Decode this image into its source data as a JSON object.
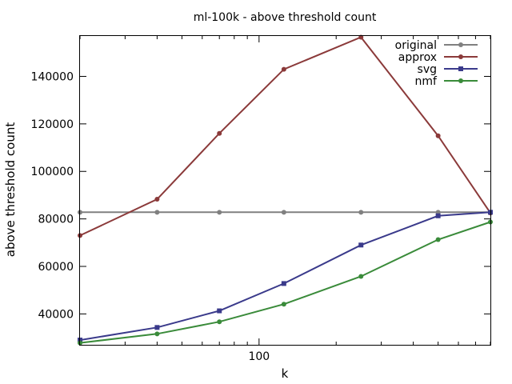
{
  "chart_data": {
    "type": "line",
    "title": "ml-100k - above threshold count",
    "xlabel": "k",
    "ylabel": "above threshold count",
    "x_scale": "log",
    "xlim": [
      20,
      800
    ],
    "ylim": [
      27000,
      157000
    ],
    "x_ticks": [
      100
    ],
    "x_tick_labels": [
      "100"
    ],
    "y_ticks": [
      40000,
      60000,
      80000,
      100000,
      120000,
      140000
    ],
    "y_tick_labels": [
      "40000",
      "60000",
      "80000",
      "100000",
      "120000",
      "140000"
    ],
    "grid": false,
    "legend_position": "top-right",
    "x": [
      20,
      40,
      70,
      125,
      250,
      500,
      800
    ],
    "series": [
      {
        "name": "original",
        "color": "#808080",
        "marker": "circle",
        "values": [
          82800,
          82800,
          82800,
          82800,
          82800,
          82800,
          82800
        ]
      },
      {
        "name": "approx",
        "color": "#8b3a3a",
        "marker": "circle",
        "values": [
          73000,
          88300,
          116000,
          143000,
          156500,
          115000,
          82500
        ]
      },
      {
        "name": "svg",
        "color": "#3a3a8b",
        "marker": "square",
        "values": [
          29000,
          34300,
          41300,
          52800,
          69000,
          81300,
          82800
        ]
      },
      {
        "name": "nmf",
        "color": "#3a8b3a",
        "marker": "circle",
        "values": [
          27800,
          31600,
          36700,
          44100,
          55800,
          71300,
          78700
        ]
      }
    ]
  }
}
